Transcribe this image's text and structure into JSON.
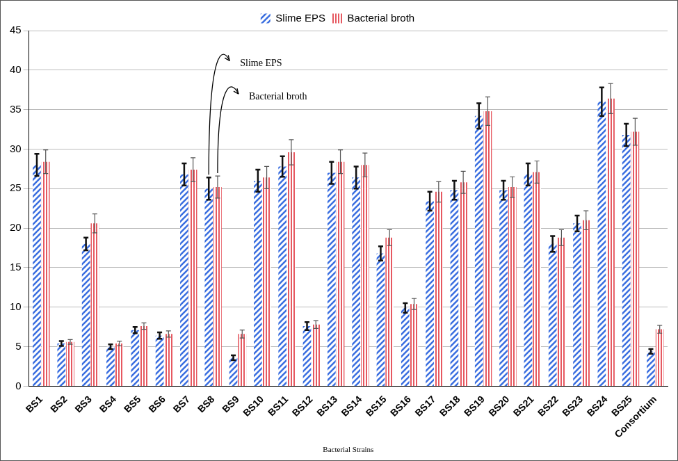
{
  "chart_data": {
    "type": "bar",
    "x_label": "Bacterial Strains",
    "categories": [
      "BS1",
      "BS2",
      "BS3",
      "BS4",
      "BS5",
      "BS6",
      "BS7",
      "BS8",
      "BS9",
      "BS10",
      "BS11",
      "BS12",
      "BS13",
      "BS14",
      "BS15",
      "BS16",
      "BS17",
      "BS18",
      "BS19",
      "BS20",
      "BS21",
      "BS22",
      "BS23",
      "BS24",
      "BS25",
      "Consortium"
    ],
    "series": [
      {
        "name": "Slime EPS",
        "color": "#3b6fe0",
        "values": [
          28,
          5.4,
          18,
          5,
          7.1,
          6.4,
          26.8,
          25,
          3.6,
          26,
          27.8,
          7.6,
          27,
          26.4,
          16.8,
          9.9,
          23.4,
          24.8,
          34.2,
          24.8,
          26.8,
          18,
          20.6,
          36,
          31.8,
          4.4
        ],
        "errors": [
          1.4,
          0.3,
          0.8,
          0.3,
          0.4,
          0.4,
          1.4,
          1.4,
          0.3,
          1.4,
          1.3,
          0.5,
          1.4,
          1.4,
          0.9,
          0.6,
          1.2,
          1.2,
          1.6,
          1.2,
          1.4,
          1,
          1,
          1.8,
          1.4,
          0.3
        ]
      },
      {
        "name": "Bacterial broth",
        "color": "#e0303a",
        "values": [
          28.4,
          5.6,
          20.6,
          5.4,
          7.6,
          6.6,
          27.4,
          25.2,
          6.6,
          26.4,
          29.6,
          7.8,
          28.4,
          28,
          18.8,
          10.4,
          24.6,
          25.8,
          34.8,
          25.2,
          27.1,
          18.8,
          21,
          36.4,
          32.2,
          7.2
        ],
        "errors": [
          1.5,
          0.3,
          1.2,
          0.3,
          0.4,
          0.4,
          1.5,
          1.4,
          0.5,
          1.4,
          1.6,
          0.5,
          1.5,
          1.5,
          1,
          0.7,
          1.3,
          1.4,
          1.8,
          1.3,
          1.4,
          1,
          1.2,
          1.9,
          1.7,
          0.5
        ]
      }
    ],
    "ylim": [
      0,
      45
    ],
    "yticks": [
      0,
      5,
      10,
      15,
      20,
      25,
      30,
      35,
      40,
      45
    ],
    "grid": true,
    "legend": "top",
    "annotations": [
      {
        "text": "Slime EPS",
        "category": "BS8",
        "series": "Slime EPS"
      },
      {
        "text": "Bacterial broth",
        "category": "BS8",
        "series": "Bacterial broth"
      }
    ]
  }
}
